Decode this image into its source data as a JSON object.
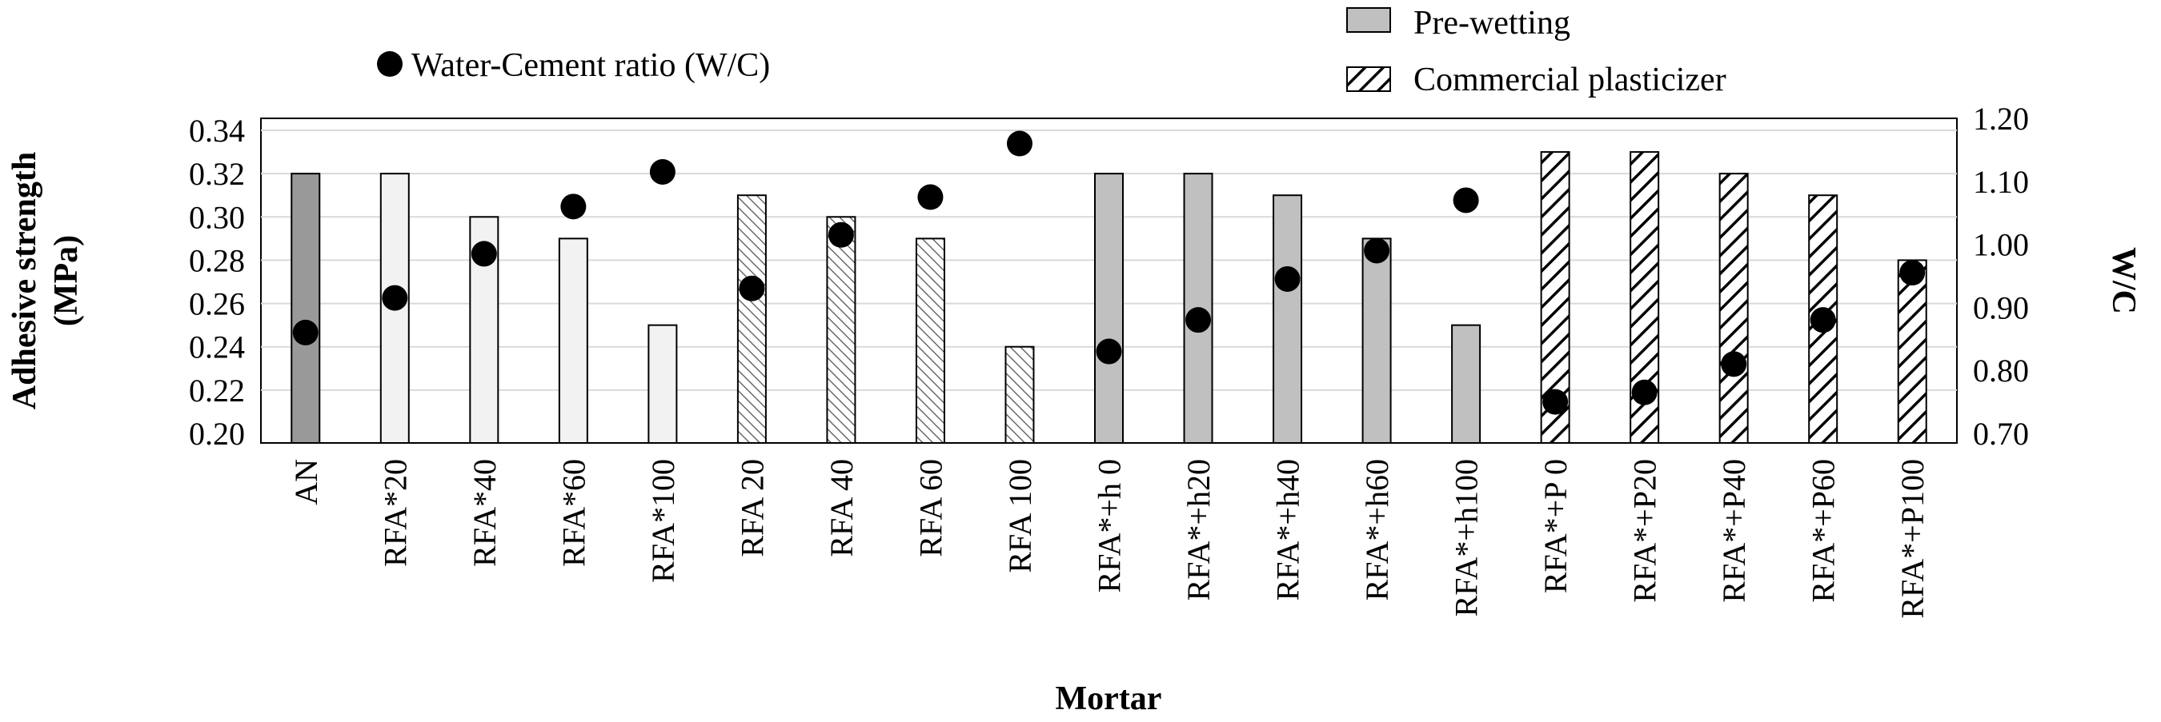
{
  "chart_data": {
    "type": "bar",
    "title": "",
    "xlabel": "Mortar",
    "ylabel_line1": "Adhesive strength",
    "ylabel_line2": "(MPa)",
    "y2label": "W/C",
    "ylim": [
      0.2,
      0.35
    ],
    "y_ticks": [
      "0.20",
      "0.22",
      "0.24",
      "0.26",
      "0.28",
      "0.30",
      "0.32",
      "0.34"
    ],
    "y2lim": [
      0.7,
      1.2
    ],
    "y2_ticks": [
      "0.70",
      "0.80",
      "0.90",
      "1.00",
      "1.10",
      "1.20"
    ],
    "categories": [
      "AN",
      "RFA*20",
      "RFA*40",
      "RFA*60",
      "RFA*100",
      "RFA 20",
      "RFA 40",
      "RFA 60",
      "RFA 100",
      "RFA*+h 0",
      "RFA*+h20",
      "RFA*+h40",
      "RFA*+h60",
      "RFA*+h100",
      "RFA*+P 0",
      "RFA*+P20",
      "RFA*+P40",
      "RFA*+P60",
      "RFA*+P100"
    ],
    "groups": [
      "reference",
      "rfa-star",
      "rfa-star",
      "rfa-star",
      "rfa-star",
      "rfa",
      "rfa",
      "rfa",
      "rfa",
      "prewet",
      "prewet",
      "prewet",
      "prewet",
      "prewet",
      "plasticizer",
      "plasticizer",
      "plasticizer",
      "plasticizer",
      "plasticizer"
    ],
    "series": [
      {
        "name": "Adhesive strength (MPa)",
        "axis": "left",
        "values": [
          0.32,
          0.32,
          0.3,
          0.29,
          0.25,
          0.31,
          0.3,
          0.29,
          0.24,
          0.32,
          0.32,
          0.31,
          0.29,
          0.25,
          0.33,
          0.33,
          0.32,
          0.31,
          0.28
        ]
      },
      {
        "name": "Water-Cement ratio (W/C)",
        "axis": "right",
        "values": [
          0.86,
          0.915,
          0.985,
          1.06,
          1.115,
          0.93,
          1.015,
          1.075,
          1.16,
          0.83,
          0.88,
          0.945,
          0.99,
          1.07,
          0.75,
          0.765,
          0.81,
          0.88,
          0.955
        ]
      }
    ],
    "legend": {
      "wc": "Water-Cement ratio (W/C)",
      "prewet": "Pre-wetting",
      "plasticizer": "Commercial plasticizer"
    },
    "colors": {
      "reference": "#999999",
      "rfa_star": "#f2f2f2",
      "prewet": "#c0c0c0",
      "grid": "#d9d9d9",
      "marker": "#000000"
    },
    "grid": true
  }
}
